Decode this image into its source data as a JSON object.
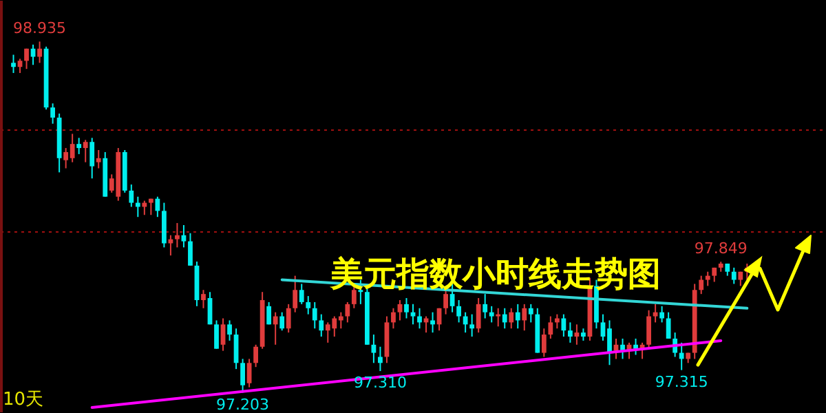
{
  "chart_data": {
    "type": "candlestick",
    "title": "美元指数小时线走势图",
    "categories": [
      null,
      null,
      null,
      null,
      null,
      null,
      null,
      null,
      null,
      null,
      null,
      null,
      null,
      null,
      null,
      null,
      null,
      null,
      null,
      null,
      null,
      null,
      null,
      null,
      null,
      null,
      null,
      null,
      null,
      null,
      null,
      null,
      null,
      null,
      null,
      null,
      null,
      null,
      null,
      null,
      null,
      null,
      null,
      null,
      null,
      null,
      null,
      null,
      null,
      null,
      null,
      null,
      null,
      null,
      null,
      null,
      null,
      null,
      null,
      null,
      null,
      null,
      null,
      null,
      null,
      null,
      null,
      null,
      null,
      null,
      null,
      null,
      null,
      null,
      null,
      null,
      null,
      null,
      null,
      null,
      null,
      null,
      null,
      null,
      null,
      null,
      null,
      null,
      null,
      null,
      null,
      null,
      null,
      null,
      null,
      null,
      null,
      null,
      null,
      null,
      null,
      null,
      null,
      null,
      null,
      null,
      null,
      null,
      null,
      null,
      null,
      null,
      null
    ],
    "ohlc": [
      [
        98.83,
        98.87,
        98.78,
        98.81
      ],
      [
        98.81,
        98.85,
        98.78,
        98.84
      ],
      [
        98.84,
        98.9,
        98.8,
        98.9
      ],
      [
        98.9,
        98.92,
        98.82,
        98.86
      ],
      [
        98.86,
        98.935,
        98.83,
        98.9
      ],
      [
        98.9,
        98.91,
        98.6,
        98.61
      ],
      [
        98.61,
        98.63,
        98.53,
        98.56
      ],
      [
        98.56,
        98.58,
        98.29,
        98.36
      ],
      [
        98.35,
        98.41,
        98.31,
        98.39
      ],
      [
        98.36,
        98.48,
        98.34,
        98.43
      ],
      [
        98.43,
        98.46,
        98.38,
        98.41
      ],
      [
        98.41,
        98.45,
        98.34,
        98.44
      ],
      [
        98.44,
        98.46,
        98.26,
        98.32
      ],
      [
        98.34,
        98.4,
        98.31,
        98.36
      ],
      [
        98.36,
        98.39,
        98.17,
        98.17
      ],
      [
        98.2,
        98.28,
        98.19,
        98.26
      ],
      [
        98.17,
        98.41,
        98.15,
        98.39
      ],
      [
        98.39,
        98.4,
        98.19,
        98.2
      ],
      [
        98.2,
        98.23,
        98.12,
        98.14
      ],
      [
        98.14,
        98.17,
        98.07,
        98.12
      ],
      [
        98.12,
        98.15,
        98.08,
        98.14
      ],
      [
        98.14,
        98.16,
        98.08,
        98.16
      ],
      [
        98.16,
        98.17,
        98.07,
        98.1
      ],
      [
        98.1,
        98.14,
        97.92,
        97.94
      ],
      [
        97.94,
        97.98,
        97.88,
        97.96
      ],
      [
        97.96,
        98.04,
        97.92,
        97.98
      ],
      [
        97.98,
        98.03,
        97.92,
        97.95
      ],
      [
        97.95,
        97.99,
        97.83,
        97.83
      ],
      [
        97.83,
        97.85,
        97.63,
        97.66
      ],
      [
        97.66,
        97.71,
        97.62,
        97.69
      ],
      [
        97.67,
        97.7,
        97.54,
        97.54
      ],
      [
        97.54,
        97.56,
        97.42,
        97.42
      ],
      [
        97.44,
        97.57,
        97.41,
        97.54
      ],
      [
        97.54,
        97.56,
        97.46,
        97.49
      ],
      [
        97.49,
        97.52,
        97.32,
        97.35
      ],
      [
        97.35,
        97.37,
        97.203,
        97.24
      ],
      [
        97.25,
        97.37,
        97.23,
        97.35
      ],
      [
        97.35,
        97.44,
        97.33,
        97.43
      ],
      [
        97.43,
        97.7,
        97.42,
        97.66
      ],
      [
        97.63,
        97.65,
        97.54,
        97.54
      ],
      [
        97.54,
        97.6,
        97.44,
        97.58
      ],
      [
        97.58,
        97.6,
        97.51,
        97.52
      ],
      [
        97.52,
        97.64,
        97.5,
        97.62
      ],
      [
        97.62,
        97.78,
        97.6,
        97.71
      ],
      [
        97.71,
        97.74,
        97.64,
        97.65
      ],
      [
        97.65,
        97.68,
        97.59,
        97.62
      ],
      [
        97.62,
        97.65,
        97.52,
        97.56
      ],
      [
        97.56,
        97.59,
        97.48,
        97.51
      ],
      [
        97.51,
        97.55,
        97.45,
        97.54
      ],
      [
        97.52,
        97.58,
        97.48,
        97.57
      ],
      [
        97.56,
        97.6,
        97.52,
        97.58
      ],
      [
        97.58,
        97.65,
        97.55,
        97.64
      ],
      [
        97.64,
        97.74,
        97.62,
        97.71
      ],
      [
        97.71,
        97.76,
        97.64,
        97.7
      ],
      [
        97.7,
        97.73,
        97.44,
        97.44
      ],
      [
        97.44,
        97.49,
        97.35,
        97.4
      ],
      [
        97.38,
        97.43,
        97.31,
        97.35
      ],
      [
        97.38,
        97.58,
        97.35,
        97.55
      ],
      [
        97.55,
        97.62,
        97.52,
        97.6
      ],
      [
        97.6,
        97.66,
        97.56,
        97.64
      ],
      [
        97.64,
        97.67,
        97.57,
        97.6
      ],
      [
        97.6,
        97.64,
        97.54,
        97.58
      ],
      [
        97.58,
        97.62,
        97.52,
        97.55
      ],
      [
        97.55,
        97.58,
        97.5,
        97.57
      ],
      [
        97.56,
        97.6,
        97.5,
        97.54
      ],
      [
        97.54,
        97.62,
        97.51,
        97.62
      ],
      [
        97.62,
        97.71,
        97.59,
        97.69
      ],
      [
        97.69,
        97.74,
        97.6,
        97.63
      ],
      [
        97.63,
        97.66,
        97.55,
        97.58
      ],
      [
        97.58,
        97.6,
        97.5,
        97.54
      ],
      [
        97.54,
        97.59,
        97.48,
        97.52
      ],
      [
        97.52,
        97.67,
        97.5,
        97.64
      ],
      [
        97.64,
        97.69,
        97.57,
        97.6
      ],
      [
        97.6,
        97.63,
        97.55,
        97.58
      ],
      [
        97.58,
        97.62,
        97.53,
        97.59
      ],
      [
        97.59,
        97.62,
        97.52,
        97.55
      ],
      [
        97.55,
        97.62,
        97.52,
        97.6
      ],
      [
        97.6,
        97.64,
        97.52,
        97.56
      ],
      [
        97.56,
        97.64,
        97.51,
        97.62
      ],
      [
        97.62,
        97.64,
        97.55,
        97.59
      ],
      [
        97.59,
        97.62,
        97.4,
        97.4
      ],
      [
        97.4,
        97.52,
        97.38,
        97.49
      ],
      [
        97.49,
        97.58,
        97.47,
        97.55
      ],
      [
        97.55,
        97.59,
        97.52,
        97.57
      ],
      [
        97.57,
        97.59,
        97.48,
        97.51
      ],
      [
        97.51,
        97.55,
        97.45,
        97.48
      ],
      [
        97.48,
        97.54,
        97.44,
        97.5
      ],
      [
        97.5,
        97.52,
        97.46,
        97.48
      ],
      [
        97.48,
        97.77,
        97.46,
        97.73
      ],
      [
        97.73,
        97.76,
        97.52,
        97.55
      ],
      [
        97.55,
        97.59,
        97.46,
        97.48
      ],
      [
        97.52,
        97.56,
        97.34,
        97.4
      ],
      [
        97.41,
        97.47,
        97.37,
        97.44
      ],
      [
        97.44,
        97.47,
        97.37,
        97.41
      ],
      [
        97.41,
        97.45,
        97.37,
        97.44
      ],
      [
        97.44,
        97.47,
        97.39,
        97.42
      ],
      [
        97.42,
        97.45,
        97.37,
        97.44
      ],
      [
        97.44,
        97.61,
        97.42,
        97.58
      ],
      [
        97.58,
        97.64,
        97.55,
        97.6
      ],
      [
        97.6,
        97.63,
        97.55,
        97.57
      ],
      [
        97.57,
        97.6,
        97.47,
        97.47
      ],
      [
        97.47,
        97.5,
        97.38,
        97.4
      ],
      [
        97.4,
        97.45,
        97.315,
        97.37
      ],
      [
        97.37,
        97.4,
        97.35,
        97.4
      ],
      [
        97.4,
        97.74,
        97.37,
        97.71
      ],
      [
        97.71,
        97.78,
        97.69,
        97.76
      ],
      [
        97.76,
        97.8,
        97.73,
        97.78
      ],
      [
        97.78,
        97.82,
        97.75,
        97.82
      ],
      [
        97.82,
        97.849,
        97.8,
        97.84
      ],
      [
        97.84,
        97.84,
        97.78,
        97.8
      ],
      [
        97.8,
        97.82,
        97.74,
        97.76
      ],
      [
        97.76,
        97.8,
        97.73,
        97.8
      ],
      [
        97.8,
        97.84,
        97.76,
        97.82
      ]
    ],
    "colors": [
      "#00eeee",
      "#e03c3c",
      "#e03c3c",
      "#00eeee",
      "#e03c3c",
      "#00eeee",
      "#00eeee",
      "#00eeee",
      "#e03c3c",
      "#e03c3c",
      "#00eeee",
      "#e03c3c",
      "#00eeee",
      "#e03c3c",
      "#00eeee",
      "#e03c3c",
      "#e03c3c",
      "#00eeee",
      "#00eeee",
      "#00eeee",
      "#e03c3c",
      "#e03c3c",
      "#00eeee",
      "#00eeee",
      "#e03c3c",
      "#e03c3c",
      "#00eeee",
      "#00eeee",
      "#00eeee",
      "#e03c3c",
      "#00eeee",
      "#00eeee",
      "#e03c3c",
      "#00eeee",
      "#00eeee",
      "#00eeee",
      "#e03c3c",
      "#e03c3c",
      "#e03c3c",
      "#00eeee",
      "#e03c3c",
      "#00eeee",
      "#e03c3c",
      "#e03c3c",
      "#00eeee",
      "#00eeee",
      "#00eeee",
      "#00eeee",
      "#e03c3c",
      "#e03c3c",
      "#e03c3c",
      "#e03c3c",
      "#e03c3c",
      "#00eeee",
      "#00eeee",
      "#00eeee",
      "#00eeee",
      "#e03c3c",
      "#e03c3c",
      "#e03c3c",
      "#00eeee",
      "#00eeee",
      "#00eeee",
      "#e03c3c",
      "#00eeee",
      "#e03c3c",
      "#e03c3c",
      "#00eeee",
      "#00eeee",
      "#00eeee",
      "#00eeee",
      "#e03c3c",
      "#00eeee",
      "#00eeee",
      "#e03c3c",
      "#00eeee",
      "#e03c3c",
      "#00eeee",
      "#e03c3c",
      "#00eeee",
      "#00eeee",
      "#e03c3c",
      "#e03c3c",
      "#e03c3c",
      "#00eeee",
      "#00eeee",
      "#e03c3c",
      "#00eeee",
      "#e03c3c",
      "#00eeee",
      "#00eeee",
      "#00eeee",
      "#e03c3c",
      "#00eeee",
      "#e03c3c",
      "#00eeee",
      "#e03c3c",
      "#e03c3c",
      "#e03c3c",
      "#00eeee",
      "#00eeee",
      "#00eeee",
      "#00eeee",
      "#e03c3c",
      "#e03c3c",
      "#e03c3c",
      "#e03c3c",
      "#e03c3c",
      "#e03c3c",
      "#00eeee",
      "#00eeee",
      "#e03c3c",
      "#e03c3c"
    ],
    "series": [
      {
        "type": "line",
        "color": "#33d6d6",
        "values": [
          null,
          null,
          null,
          null,
          null,
          null,
          null,
          null,
          null,
          null,
          null,
          null,
          null,
          null,
          null,
          null,
          null,
          null,
          null,
          null,
          null,
          null,
          null,
          null,
          null,
          null,
          null,
          null,
          null,
          null,
          null,
          null,
          null,
          null,
          null,
          null,
          null,
          null,
          null,
          null,
          null,
          97.76,
          null,
          null,
          null,
          null,
          null,
          null,
          null,
          null,
          null,
          null,
          null,
          null,
          null,
          null,
          null,
          null,
          null,
          null,
          null,
          null,
          null,
          null,
          null,
          null,
          null,
          null,
          null,
          null,
          null,
          null,
          null,
          null,
          null,
          null,
          null,
          null,
          null,
          null,
          null,
          null,
          null,
          null,
          null,
          null,
          null,
          null,
          null,
          null,
          null,
          null,
          null,
          null,
          null,
          null,
          null,
          null,
          null,
          null,
          null,
          null,
          null,
          null,
          null,
          null,
          null,
          null,
          null,
          null,
          null,
          null,
          97.62
        ]
      },
      {
        "type": "line",
        "color": "#ff00ff",
        "values": [
          null,
          null,
          null,
          null,
          null,
          null,
          null,
          null,
          null,
          null,
          null,
          null,
          97.13,
          null,
          null,
          null,
          null,
          null,
          null,
          null,
          null,
          null,
          null,
          null,
          null,
          null,
          null,
          null,
          null,
          null,
          null,
          null,
          null,
          null,
          null,
          null,
          null,
          null,
          null,
          null,
          null,
          null,
          null,
          null,
          null,
          null,
          null,
          null,
          null,
          null,
          null,
          null,
          null,
          null,
          null,
          null,
          null,
          null,
          null,
          null,
          null,
          null,
          null,
          null,
          null,
          null,
          null,
          null,
          null,
          null,
          null,
          null,
          null,
          null,
          null,
          null,
          null,
          null,
          null,
          null,
          null,
          null,
          null,
          null,
          null,
          null,
          null,
          null,
          null,
          null,
          null,
          null,
          null,
          null,
          null,
          null,
          null,
          null,
          null,
          null,
          null,
          null,
          null,
          null,
          null,
          null,
          null,
          null,
          97.46,
          null,
          null,
          null,
          null
        ]
      }
    ],
    "ylim": [
      97.11,
      99.14
    ],
    "yticks": [
      {
        "value": 98.0,
        "label": null
      },
      {
        "value": 98.5,
        "label": null
      }
    ],
    "grid": "y",
    "tick_labels": false,
    "annotations": [
      {
        "text": "98.935",
        "y": 98.935
      },
      {
        "text": "97.203",
        "y": 97.203
      },
      {
        "text": "97.310",
        "y": 97.31
      },
      {
        "text": "97.315",
        "y": 97.315
      },
      {
        "text": "97.849",
        "y": 97.849
      },
      "10天"
    ]
  }
}
